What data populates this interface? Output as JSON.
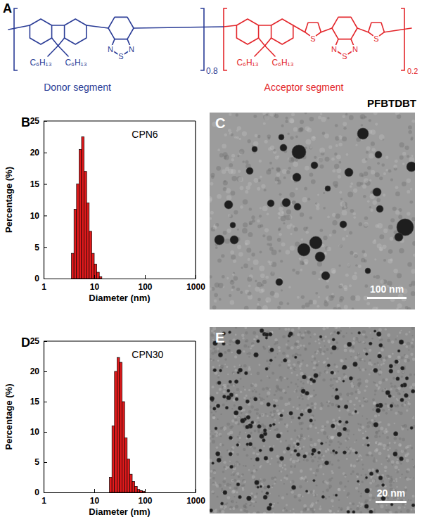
{
  "structure": {
    "panel": "A",
    "donor_label": "Donor segment",
    "acceptor_label": "Acceptor segment",
    "donor_fraction": 0.8,
    "acceptor_fraction": 0.2,
    "name": "PFBTDBT",
    "side_chain": "C₆H₁₃",
    "sulfur": "S",
    "nitrogen": "N"
  },
  "chart_data": [
    {
      "type": "histogram",
      "panel": "B",
      "title": "CPN6",
      "x_label": "Diameter (nm)",
      "y_label": "Percentage (%)",
      "log": "x",
      "xlim": [
        1,
        1000
      ],
      "xticks": [
        1,
        10,
        100,
        1000
      ],
      "ylim": [
        0,
        25
      ],
      "yticks": [
        0,
        5,
        10,
        15,
        20,
        25
      ],
      "bins": [
        3.55,
        3.98,
        4.47,
        5.01,
        5.62,
        6.31,
        7.08,
        7.94,
        8.91,
        10.0,
        11.22,
        12.59,
        14.13
      ],
      "values": [
        4,
        11,
        15,
        20.5,
        22.5,
        17,
        12,
        7.5,
        4,
        2.3,
        1,
        0.3
      ],
      "color": "#e31a1c"
    },
    {
      "type": "histogram",
      "panel": "D",
      "title": "CPN30",
      "x_label": "Diameter (nm)",
      "y_label": "Percentage (%)",
      "log": "x",
      "xlim": [
        1,
        1000
      ],
      "xticks": [
        1,
        10,
        100,
        1000
      ],
      "ylim": [
        0,
        25
      ],
      "yticks": [
        0,
        5,
        10,
        15,
        20,
        25
      ],
      "bins": [
        19.95,
        22.39,
        25.12,
        28.18,
        31.62,
        35.48,
        39.81,
        44.67,
        50.12,
        56.23,
        63.1,
        70.79,
        79.43,
        89.13,
        100.0
      ],
      "values": [
        2.5,
        11,
        20,
        22.3,
        21.5,
        15,
        9,
        5.5,
        3,
        1.8,
        1,
        0.5,
        0.3,
        0.2
      ],
      "color": "#e31a1c"
    }
  ],
  "micrographs": [
    {
      "panel": "C",
      "scale_bar": "100 nm"
    },
    {
      "panel": "E",
      "scale_bar": "20 nm"
    }
  ]
}
